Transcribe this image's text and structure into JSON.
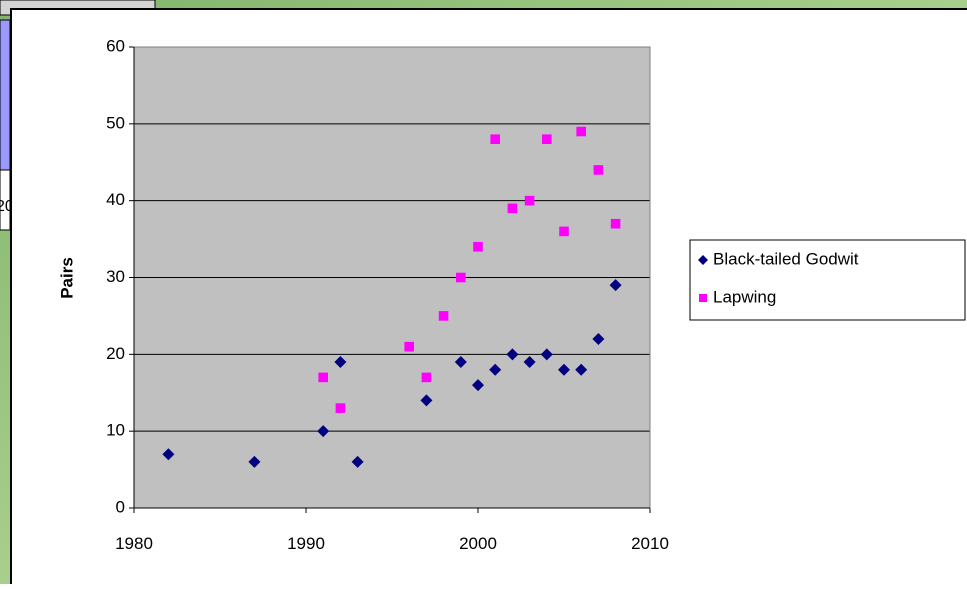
{
  "fragment_text": "20",
  "chart_data": {
    "type": "scatter",
    "y_label": "Pairs",
    "xlim": [
      1980,
      2010
    ],
    "xticks": [
      1980,
      1990,
      2000,
      2010
    ],
    "ylim": [
      0,
      60
    ],
    "yticks": [
      0,
      10,
      20,
      30,
      40,
      50,
      60
    ],
    "grid": true,
    "legend": "right",
    "series": [
      {
        "name": "Black-tailed Godwit",
        "color": "#000080",
        "marker": "diamond",
        "x": [
          1982,
          1987,
          1991,
          1992,
          1993,
          1997,
          1999,
          2000,
          2001,
          2002,
          2003,
          2004,
          2005,
          2006,
          2007,
          2008
        ],
        "values": [
          7,
          6,
          10,
          19,
          6,
          14,
          19,
          16,
          18,
          20,
          19,
          20,
          18,
          18,
          22,
          29
        ]
      },
      {
        "name": "Lapwing",
        "color": "#FF00FF",
        "marker": "square",
        "x": [
          1991,
          1992,
          1996,
          1997,
          1998,
          1999,
          2000,
          2001,
          2002,
          2003,
          2004,
          2005,
          2006,
          2007,
          2008
        ],
        "values": [
          17,
          13,
          21,
          17,
          25,
          30,
          34,
          48,
          39,
          40,
          48,
          36,
          49,
          44,
          37
        ]
      }
    ]
  }
}
